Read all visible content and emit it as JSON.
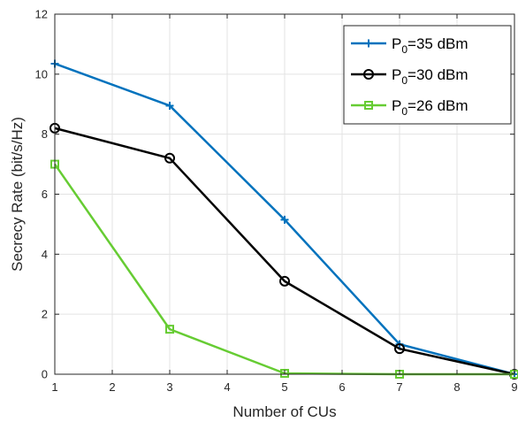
{
  "chart_data": {
    "type": "line",
    "title": "",
    "xlabel": "Number of CUs",
    "ylabel": "Secrecy Rate (bit/s/Hz)",
    "xlim": [
      1,
      9
    ],
    "ylim": [
      0,
      12
    ],
    "xticks": [
      1,
      2,
      3,
      4,
      5,
      6,
      7,
      8,
      9
    ],
    "yticks": [
      0,
      2,
      4,
      6,
      8,
      10,
      12
    ],
    "grid": true,
    "legend_position": "top-right",
    "x": [
      1,
      3,
      5,
      7,
      9
    ],
    "series": [
      {
        "name_prefix": "P",
        "name_sub": "0",
        "name_suffix": "=35 dBm",
        "color": "#0072BD",
        "marker": "plus",
        "values": [
          10.35,
          8.95,
          5.15,
          1.0,
          0.0
        ]
      },
      {
        "name_prefix": "P",
        "name_sub": "0",
        "name_suffix": "=30 dBm",
        "color": "#000000",
        "marker": "circle",
        "values": [
          8.2,
          7.2,
          3.1,
          0.85,
          0.0
        ]
      },
      {
        "name_prefix": "P",
        "name_sub": "0",
        "name_suffix": "=26 dBm",
        "color": "#66CC33",
        "marker": "square",
        "values": [
          7.0,
          1.5,
          0.03,
          0.0,
          0.0
        ]
      }
    ]
  }
}
